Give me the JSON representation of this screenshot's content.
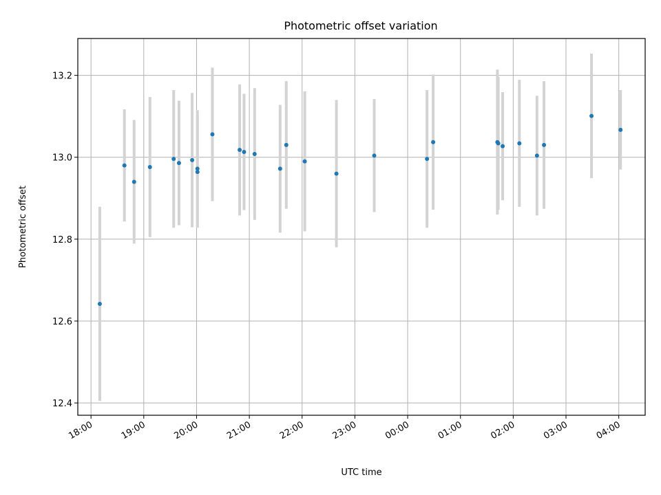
{
  "chart_data": {
    "type": "scatter",
    "title": "Photometric offset variation",
    "xlabel": "UTC time",
    "ylabel": "Photometric offset",
    "grid": true,
    "x_start": "18:00",
    "x_ticks": [
      "18:00",
      "19:00",
      "20:00",
      "21:00",
      "22:00",
      "23:00",
      "00:00",
      "01:00",
      "02:00",
      "03:00",
      "04:00"
    ],
    "y_ticks": [
      "12.4",
      "12.6",
      "12.8",
      "13.0",
      "13.2"
    ],
    "xlim": [
      "17:45",
      "04:30"
    ],
    "ylim": [
      12.37,
      13.29
    ],
    "colors": {
      "point": "#1f77b4",
      "errorbar": "#d3d3d3",
      "grid": "#b0b0b0"
    },
    "points": [
      {
        "x": "18:10",
        "y": 12.642,
        "err": 0.237
      },
      {
        "x": "18:38",
        "y": 12.98,
        "err": 0.137
      },
      {
        "x": "18:49",
        "y": 12.94,
        "err": 0.151
      },
      {
        "x": "19:07",
        "y": 12.976,
        "err": 0.171
      },
      {
        "x": "19:34",
        "y": 12.996,
        "err": 0.168
      },
      {
        "x": "19:40",
        "y": 12.986,
        "err": 0.152
      },
      {
        "x": "19:55",
        "y": 12.993,
        "err": 0.164
      },
      {
        "x": "20:01",
        "y": 12.972,
        "err": 0.143
      },
      {
        "x": "20:01",
        "y": 12.964,
        "err": 0.136
      },
      {
        "x": "20:18",
        "y": 13.056,
        "err": 0.163
      },
      {
        "x": "20:49",
        "y": 13.018,
        "err": 0.16
      },
      {
        "x": "20:54",
        "y": 13.013,
        "err": 0.142
      },
      {
        "x": "21:06",
        "y": 13.008,
        "err": 0.161
      },
      {
        "x": "21:35",
        "y": 12.972,
        "err": 0.156
      },
      {
        "x": "21:42",
        "y": 13.03,
        "err": 0.156
      },
      {
        "x": "22:03",
        "y": 12.99,
        "err": 0.171
      },
      {
        "x": "22:39",
        "y": 12.96,
        "err": 0.18
      },
      {
        "x": "23:22",
        "y": 13.004,
        "err": 0.138
      },
      {
        "x": "00:22",
        "y": 12.996,
        "err": 0.168
      },
      {
        "x": "00:29",
        "y": 13.037,
        "err": 0.165
      },
      {
        "x": "01:42",
        "y": 13.037,
        "err": 0.177
      },
      {
        "x": "01:43",
        "y": 13.034,
        "err": 0.162
      },
      {
        "x": "01:48",
        "y": 13.027,
        "err": 0.132
      },
      {
        "x": "02:07",
        "y": 13.034,
        "err": 0.155
      },
      {
        "x": "02:27",
        "y": 13.004,
        "err": 0.146
      },
      {
        "x": "02:35",
        "y": 13.03,
        "err": 0.156
      },
      {
        "x": "03:29",
        "y": 13.101,
        "err": 0.152
      },
      {
        "x": "04:02",
        "y": 13.067,
        "err": 0.097
      }
    ]
  }
}
